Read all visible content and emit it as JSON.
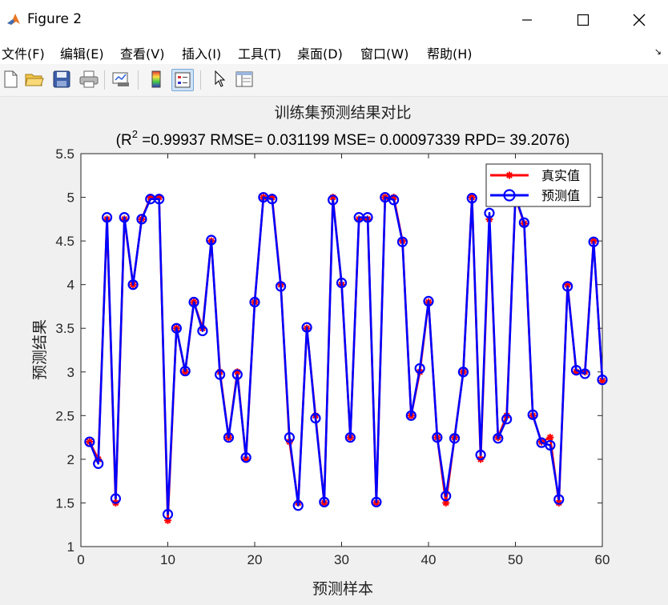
{
  "window": {
    "title": "Figure 2"
  },
  "menu": [
    "文件(F)",
    "编辑(E)",
    "查看(V)",
    "插入(I)",
    "工具(T)",
    "桌面(D)",
    "窗口(W)",
    "帮助(H)"
  ],
  "toolbar": [
    "new-figure",
    "open-file",
    "save",
    "print",
    "link-plot",
    "insert-colorbar",
    "insert-legend",
    "edit-plot",
    "property-inspector"
  ],
  "chart_data": {
    "type": "line",
    "title": "训练集预测结果对比",
    "subtitle_prefix": "(R",
    "subtitle_sup": "2",
    "subtitle_rest": " =0.99937 RMSE= 0.031199 MSE= 0.00097339 RPD= 39.2076)",
    "xlabel": "预测样本",
    "ylabel": "预测结果",
    "xlim": [
      0,
      60
    ],
    "ylim": [
      1,
      5.5
    ],
    "xticks": [
      0,
      10,
      20,
      30,
      40,
      50,
      60
    ],
    "yticks": [
      1,
      1.5,
      2,
      2.5,
      3,
      3.5,
      4,
      4.5,
      5,
      5.5
    ],
    "grid": false,
    "legend_position": "top-right",
    "x": [
      1,
      2,
      3,
      4,
      5,
      6,
      7,
      8,
      9,
      10,
      11,
      12,
      13,
      14,
      15,
      16,
      17,
      18,
      19,
      20,
      21,
      22,
      23,
      24,
      25,
      26,
      27,
      28,
      29,
      30,
      31,
      32,
      33,
      34,
      35,
      36,
      37,
      38,
      39,
      40,
      41,
      42,
      43,
      44,
      45,
      46,
      47,
      48,
      49,
      50,
      51,
      52,
      53,
      54,
      55,
      56,
      57,
      58,
      59,
      60
    ],
    "series": [
      {
        "name": "真实值",
        "color": "#ff0000",
        "marker": "asterisk",
        "values": [
          2.2,
          2.0,
          4.75,
          1.5,
          4.75,
          4.0,
          4.75,
          5.0,
          5.0,
          1.3,
          3.5,
          3.0,
          3.8,
          3.5,
          4.5,
          3.0,
          2.25,
          3.0,
          2.0,
          3.8,
          5.0,
          5.0,
          4.0,
          2.2,
          1.5,
          3.5,
          2.5,
          1.5,
          5.0,
          4.0,
          2.25,
          4.75,
          4.75,
          1.5,
          5.0,
          5.0,
          4.5,
          2.5,
          3.0,
          3.8,
          2.25,
          1.5,
          2.25,
          3.0,
          5.0,
          2.0,
          4.75,
          2.25,
          2.5,
          5.0,
          4.7,
          2.5,
          2.2,
          2.25,
          1.5,
          4.0,
          3.0,
          3.0,
          4.5,
          2.9
        ]
      },
      {
        "name": "预测值",
        "color": "#0000ff",
        "marker": "circle",
        "values": [
          2.2,
          1.95,
          4.77,
          1.55,
          4.77,
          4.0,
          4.75,
          4.98,
          4.98,
          1.37,
          3.5,
          3.01,
          3.8,
          3.47,
          4.51,
          2.97,
          2.25,
          2.97,
          2.02,
          3.8,
          5.0,
          4.98,
          3.98,
          2.25,
          1.47,
          3.51,
          2.47,
          1.51,
          4.97,
          4.02,
          2.25,
          4.77,
          4.77,
          1.51,
          5.0,
          4.97,
          4.49,
          2.5,
          3.04,
          3.81,
          2.25,
          1.58,
          2.24,
          3.0,
          4.99,
          2.05,
          4.82,
          2.24,
          2.46,
          5.01,
          4.71,
          2.51,
          2.19,
          2.16,
          1.54,
          3.98,
          3.02,
          2.98,
          4.49,
          2.91
        ]
      }
    ]
  }
}
